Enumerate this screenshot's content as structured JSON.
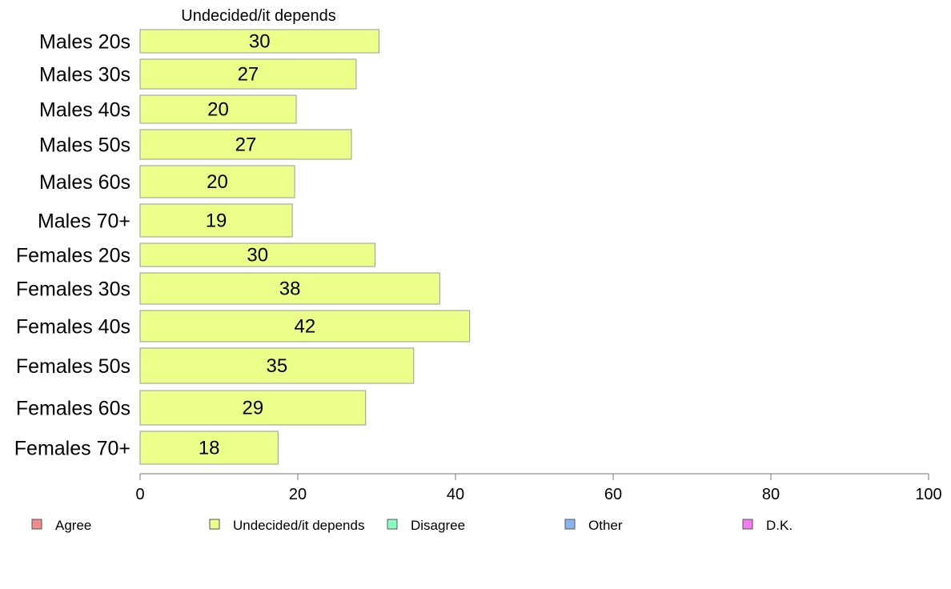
{
  "chart_data": {
    "type": "bar",
    "orientation": "horizontal",
    "title": "Undecided/it depends",
    "categories": [
      "Males 20s",
      "Males 30s",
      "Males 40s",
      "Males 50s",
      "Males 60s",
      "Males 70+",
      "Females 20s",
      "Females 30s",
      "Females 40s",
      "Females 50s",
      "Females 60s",
      "Females 70+"
    ],
    "series": [
      {
        "name": "Undecided/it depends",
        "values": [
          30.3,
          27.4,
          19.8,
          26.8,
          19.6,
          19.3,
          29.8,
          38.0,
          41.8,
          34.7,
          28.6,
          17.5
        ],
        "labels": [
          "30",
          "27",
          "20",
          "27",
          "20",
          "19",
          "30",
          "38",
          "42",
          "35",
          "29",
          "18"
        ],
        "color": "#ecff88"
      }
    ],
    "xlim": [
      0,
      100
    ],
    "xticks": [
      0,
      20,
      40,
      60,
      80,
      100
    ],
    "xtick_labels": [
      "0",
      "20",
      "40",
      "60",
      "80",
      "100"
    ],
    "grid": false,
    "legend_position": "bottom",
    "legend": [
      {
        "label": "Agree",
        "color": "#f28b8b"
      },
      {
        "label": "Undecided/it depends",
        "color": "#ecff88"
      },
      {
        "label": "Disagree",
        "color": "#88ffbb"
      },
      {
        "label": "Other",
        "color": "#88b4f2"
      },
      {
        "label": "D.K.",
        "color": "#f27cf2"
      }
    ]
  }
}
